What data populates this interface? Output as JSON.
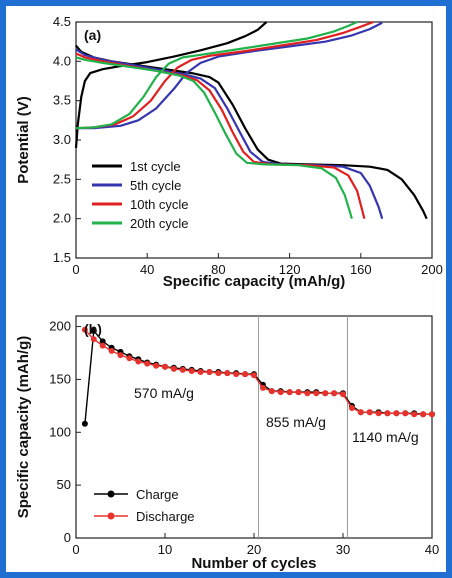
{
  "colors": {
    "border": "#1e6fd1",
    "cycle1": "#000000",
    "cycle5": "#3535b0",
    "cycle10": "#e02020",
    "cycle20": "#22b24c",
    "charge": "#000000",
    "discharge": "#e8322e",
    "divider": "#999999"
  },
  "chart_data": [
    {
      "type": "line",
      "panel_label": "(a)",
      "xlabel": "Specific capacity (mAh/g)",
      "ylabel": "Potential (V)",
      "xlim": [
        0,
        200
      ],
      "ylim": [
        1.5,
        4.5
      ],
      "x_ticks": [
        "0",
        "40",
        "80",
        "120",
        "160",
        "200"
      ],
      "y_ticks": [
        "1.5",
        "2.0",
        "2.5",
        "3.0",
        "3.5",
        "4.0",
        "4.5"
      ],
      "legend_position": "bottom-left",
      "series": [
        {
          "name": "1st cycle",
          "color_key": "cycle1",
          "charge": [
            [
              0,
              2.9
            ],
            [
              1,
              3.2
            ],
            [
              3,
              3.55
            ],
            [
              5,
              3.75
            ],
            [
              8,
              3.85
            ],
            [
              15,
              3.9
            ],
            [
              25,
              3.94
            ],
            [
              40,
              3.99
            ],
            [
              55,
              4.06
            ],
            [
              70,
              4.14
            ],
            [
              85,
              4.23
            ],
            [
              95,
              4.32
            ],
            [
              102,
              4.4
            ],
            [
              107,
              4.5
            ]
          ],
          "discharge": [
            [
              0,
              4.2
            ],
            [
              3,
              4.12
            ],
            [
              10,
              4.05
            ],
            [
              20,
              4.0
            ],
            [
              35,
              3.95
            ],
            [
              50,
              3.9
            ],
            [
              65,
              3.85
            ],
            [
              75,
              3.8
            ],
            [
              80,
              3.73
            ],
            [
              88,
              3.45
            ],
            [
              95,
              3.15
            ],
            [
              102,
              2.88
            ],
            [
              108,
              2.75
            ],
            [
              115,
              2.7
            ],
            [
              130,
              2.69
            ],
            [
              150,
              2.68
            ],
            [
              165,
              2.66
            ],
            [
              175,
              2.62
            ],
            [
              183,
              2.5
            ],
            [
              190,
              2.3
            ],
            [
              195,
              2.1
            ],
            [
              197,
              2.0
            ]
          ]
        },
        {
          "name": "5th cycle",
          "color_key": "cycle5",
          "charge": [
            [
              0,
              3.15
            ],
            [
              10,
              3.15
            ],
            [
              25,
              3.18
            ],
            [
              35,
              3.25
            ],
            [
              45,
              3.4
            ],
            [
              55,
              3.65
            ],
            [
              62,
              3.85
            ],
            [
              70,
              3.98
            ],
            [
              80,
              4.06
            ],
            [
              100,
              4.13
            ],
            [
              120,
              4.19
            ],
            [
              140,
              4.25
            ],
            [
              155,
              4.33
            ],
            [
              165,
              4.41
            ],
            [
              172,
              4.49
            ]
          ],
          "discharge": [
            [
              0,
              4.15
            ],
            [
              5,
              4.08
            ],
            [
              15,
              4.02
            ],
            [
              30,
              3.96
            ],
            [
              45,
              3.9
            ],
            [
              60,
              3.84
            ],
            [
              70,
              3.78
            ],
            [
              78,
              3.66
            ],
            [
              85,
              3.4
            ],
            [
              92,
              3.1
            ],
            [
              98,
              2.85
            ],
            [
              105,
              2.72
            ],
            [
              115,
              2.69
            ],
            [
              135,
              2.68
            ],
            [
              150,
              2.66
            ],
            [
              160,
              2.58
            ],
            [
              165,
              2.42
            ],
            [
              170,
              2.15
            ],
            [
              172,
              2.0
            ]
          ]
        },
        {
          "name": "10th cycle",
          "color_key": "cycle10",
          "charge": [
            [
              0,
              3.15
            ],
            [
              10,
              3.16
            ],
            [
              22,
              3.2
            ],
            [
              32,
              3.3
            ],
            [
              42,
              3.5
            ],
            [
              50,
              3.75
            ],
            [
              57,
              3.92
            ],
            [
              65,
              4.02
            ],
            [
              75,
              4.07
            ],
            [
              95,
              4.13
            ],
            [
              115,
              4.2
            ],
            [
              135,
              4.27
            ],
            [
              150,
              4.36
            ],
            [
              160,
              4.44
            ],
            [
              167,
              4.5
            ]
          ],
          "discharge": [
            [
              0,
              4.1
            ],
            [
              5,
              4.05
            ],
            [
              15,
              4.0
            ],
            [
              30,
              3.94
            ],
            [
              45,
              3.88
            ],
            [
              60,
              3.82
            ],
            [
              68,
              3.76
            ],
            [
              75,
              3.63
            ],
            [
              82,
              3.38
            ],
            [
              88,
              3.1
            ],
            [
              94,
              2.85
            ],
            [
              100,
              2.72
            ],
            [
              110,
              2.69
            ],
            [
              130,
              2.68
            ],
            [
              145,
              2.65
            ],
            [
              153,
              2.55
            ],
            [
              158,
              2.35
            ],
            [
              162,
              2.0
            ]
          ]
        },
        {
          "name": "20th cycle",
          "color_key": "cycle20",
          "charge": [
            [
              0,
              3.15
            ],
            [
              10,
              3.16
            ],
            [
              20,
              3.2
            ],
            [
              30,
              3.33
            ],
            [
              38,
              3.55
            ],
            [
              45,
              3.8
            ],
            [
              52,
              3.97
            ],
            [
              60,
              4.05
            ],
            [
              72,
              4.09
            ],
            [
              90,
              4.15
            ],
            [
              110,
              4.22
            ],
            [
              130,
              4.29
            ],
            [
              145,
              4.38
            ],
            [
              153,
              4.45
            ],
            [
              158,
              4.5
            ]
          ],
          "discharge": [
            [
              0,
              4.05
            ],
            [
              5,
              4.02
            ],
            [
              15,
              3.98
            ],
            [
              30,
              3.93
            ],
            [
              45,
              3.88
            ],
            [
              58,
              3.82
            ],
            [
              66,
              3.75
            ],
            [
              72,
              3.6
            ],
            [
              78,
              3.35
            ],
            [
              84,
              3.08
            ],
            [
              90,
              2.83
            ],
            [
              96,
              2.71
            ],
            [
              106,
              2.69
            ],
            [
              125,
              2.68
            ],
            [
              138,
              2.64
            ],
            [
              146,
              2.52
            ],
            [
              151,
              2.3
            ],
            [
              155,
              2.0
            ]
          ]
        }
      ]
    },
    {
      "type": "line",
      "panel_label": "(b)",
      "xlabel": "Number of cycles",
      "ylabel": "Specific capacity (mAh/g)",
      "xlim": [
        0,
        40
      ],
      "ylim": [
        0,
        210
      ],
      "x_ticks": [
        "0",
        "10",
        "20",
        "30",
        "40"
      ],
      "y_ticks": [
        "0",
        "50",
        "100",
        "150",
        "200"
      ],
      "legend_position": "bottom-left",
      "dividers_x": [
        20.5,
        30.5
      ],
      "annotations": [
        "570 mA/g",
        "855 mA/g",
        "1140 mA/g"
      ],
      "x": [
        1,
        2,
        3,
        4,
        5,
        6,
        7,
        8,
        9,
        10,
        11,
        12,
        13,
        14,
        15,
        16,
        17,
        18,
        19,
        20,
        21,
        22,
        23,
        24,
        25,
        26,
        27,
        28,
        29,
        30,
        31,
        32,
        33,
        34,
        35,
        36,
        37,
        38,
        39,
        40
      ],
      "series": [
        {
          "name": "Charge",
          "color_key": "charge",
          "values": [
            108,
            196,
            186,
            180,
            176,
            172,
            169,
            166,
            164,
            162,
            161,
            160,
            159,
            158,
            157,
            157,
            156,
            156,
            155,
            155,
            145,
            139,
            139,
            138,
            138,
            138,
            138,
            137,
            137,
            137,
            125,
            119,
            119,
            119,
            118,
            118,
            118,
            118,
            117,
            117
          ]
        },
        {
          "name": "Discharge",
          "color_key": "discharge",
          "values": [
            197,
            188,
            182,
            177,
            173,
            170,
            167,
            165,
            163,
            162,
            160,
            159,
            158,
            157,
            157,
            156,
            156,
            155,
            155,
            154,
            142,
            139,
            138,
            138,
            138,
            137,
            137,
            137,
            137,
            136,
            123,
            119,
            119,
            118,
            118,
            118,
            118,
            117,
            117,
            117
          ]
        }
      ]
    }
  ]
}
